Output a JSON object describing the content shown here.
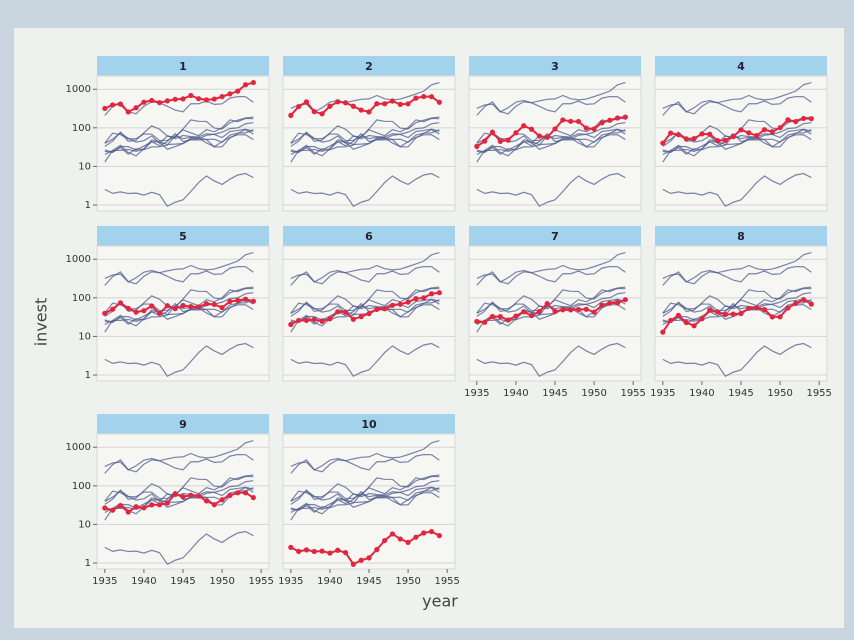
{
  "chart_data": {
    "type": "line",
    "y_label": "invest",
    "x_label": "year",
    "y_scale": "log",
    "grid": true,
    "highlight_color": "#e3263f",
    "strip_color": "#a3d3ec",
    "x": [
      1935,
      1936,
      1937,
      1938,
      1939,
      1940,
      1941,
      1942,
      1943,
      1944,
      1945,
      1946,
      1947,
      1948,
      1949,
      1950,
      1951,
      1952,
      1953,
      1954
    ],
    "xlim": [
      1934,
      1956
    ],
    "xticks": [
      1935,
      1940,
      1945,
      1950,
      1955
    ],
    "ylim": [
      0.7,
      2200
    ],
    "yticks": [
      1,
      10,
      100,
      1000
    ],
    "series": [
      {
        "name": "1",
        "color": "#4d5b8c",
        "values": [
          317.6,
          391.8,
          410.6,
          257.7,
          330.8,
          461.2,
          512,
          448,
          499.6,
          547.5,
          561.2,
          688.1,
          568.9,
          529.2,
          555.1,
          642.9,
          755.9,
          891.2,
          1304.4,
          1486.7
        ]
      },
      {
        "name": "2",
        "color": "#4d5b8c",
        "values": [
          209.9,
          355.3,
          469.9,
          262.3,
          230.4,
          361.6,
          472.8,
          445.6,
          361.6,
          288.2,
          258.7,
          420.3,
          420.5,
          494.5,
          405.1,
          418.8,
          588.2,
          645.5,
          641,
          459.3
        ]
      },
      {
        "name": "3",
        "color": "#4d5b8c",
        "values": [
          33.1,
          45,
          77.2,
          44.6,
          48.1,
          74.4,
          113,
          91.9,
          61.3,
          56.8,
          93.6,
          159.9,
          147.2,
          146.3,
          98.3,
          93.5,
          135.2,
          157.3,
          179.5,
          189.6
        ]
      },
      {
        "name": "4",
        "color": "#4d5b8c",
        "values": [
          40.29,
          72.76,
          66.26,
          51.6,
          52.41,
          69.41,
          68.35,
          46.8,
          47.4,
          59.57,
          88.78,
          74.12,
          62.68,
          89.36,
          78.98,
          100.66,
          160.62,
          145,
          174.93,
          172.49
        ]
      },
      {
        "name": "5",
        "color": "#4d5b8c",
        "values": [
          39.68,
          50.73,
          74.24,
          53.51,
          42.65,
          46.48,
          61.4,
          39.67,
          62.24,
          52.32,
          63.21,
          59.37,
          58.02,
          70.34,
          67.42,
          55.74,
          80.3,
          85.4,
          91.9,
          81.43
        ]
      },
      {
        "name": "6",
        "color": "#4d5b8c",
        "values": [
          20.36,
          25.98,
          25.94,
          27.53,
          24.6,
          28.54,
          43.41,
          42.81,
          27.84,
          32.6,
          39.03,
          50.17,
          51.85,
          64.03,
          68.16,
          77.34,
          95.3,
          99.49,
          127.52,
          135.72
        ]
      },
      {
        "name": "7",
        "color": "#4d5b8c",
        "values": [
          24.43,
          23.21,
          32.78,
          32.54,
          26.65,
          33.71,
          43.5,
          34.46,
          44.28,
          70.8,
          44.12,
          48.98,
          48.51,
          50,
          50.59,
          42.53,
          64.77,
          72.68,
          73.86,
          89.51
        ]
      },
      {
        "name": "8",
        "color": "#4d5b8c",
        "values": [
          12.93,
          25.9,
          35.05,
          22.89,
          18.84,
          28.57,
          48.51,
          43.34,
          37.02,
          37.81,
          39.27,
          53.46,
          55.56,
          49.56,
          32.04,
          32.24,
          54.38,
          71.78,
          90.08,
          68.6
        ]
      },
      {
        "name": "9",
        "color": "#4d5b8c",
        "values": [
          26.63,
          23.39,
          30.65,
          20.89,
          28.78,
          26.93,
          32.08,
          32.21,
          35.69,
          62.47,
          52.32,
          56.95,
          54.32,
          40.53,
          32.54,
          43.48,
          56.49,
          65.98,
          66.11,
          49.34
        ]
      },
      {
        "name": "10",
        "color": "#4d5b8c",
        "values": [
          2.54,
          2,
          2.19,
          1.99,
          2.03,
          1.81,
          2.14,
          1.86,
          0.93,
          1.18,
          1.36,
          2.24,
          3.81,
          5.66,
          4.21,
          3.42,
          4.67,
          6,
          6.53,
          5.12
        ]
      }
    ]
  }
}
